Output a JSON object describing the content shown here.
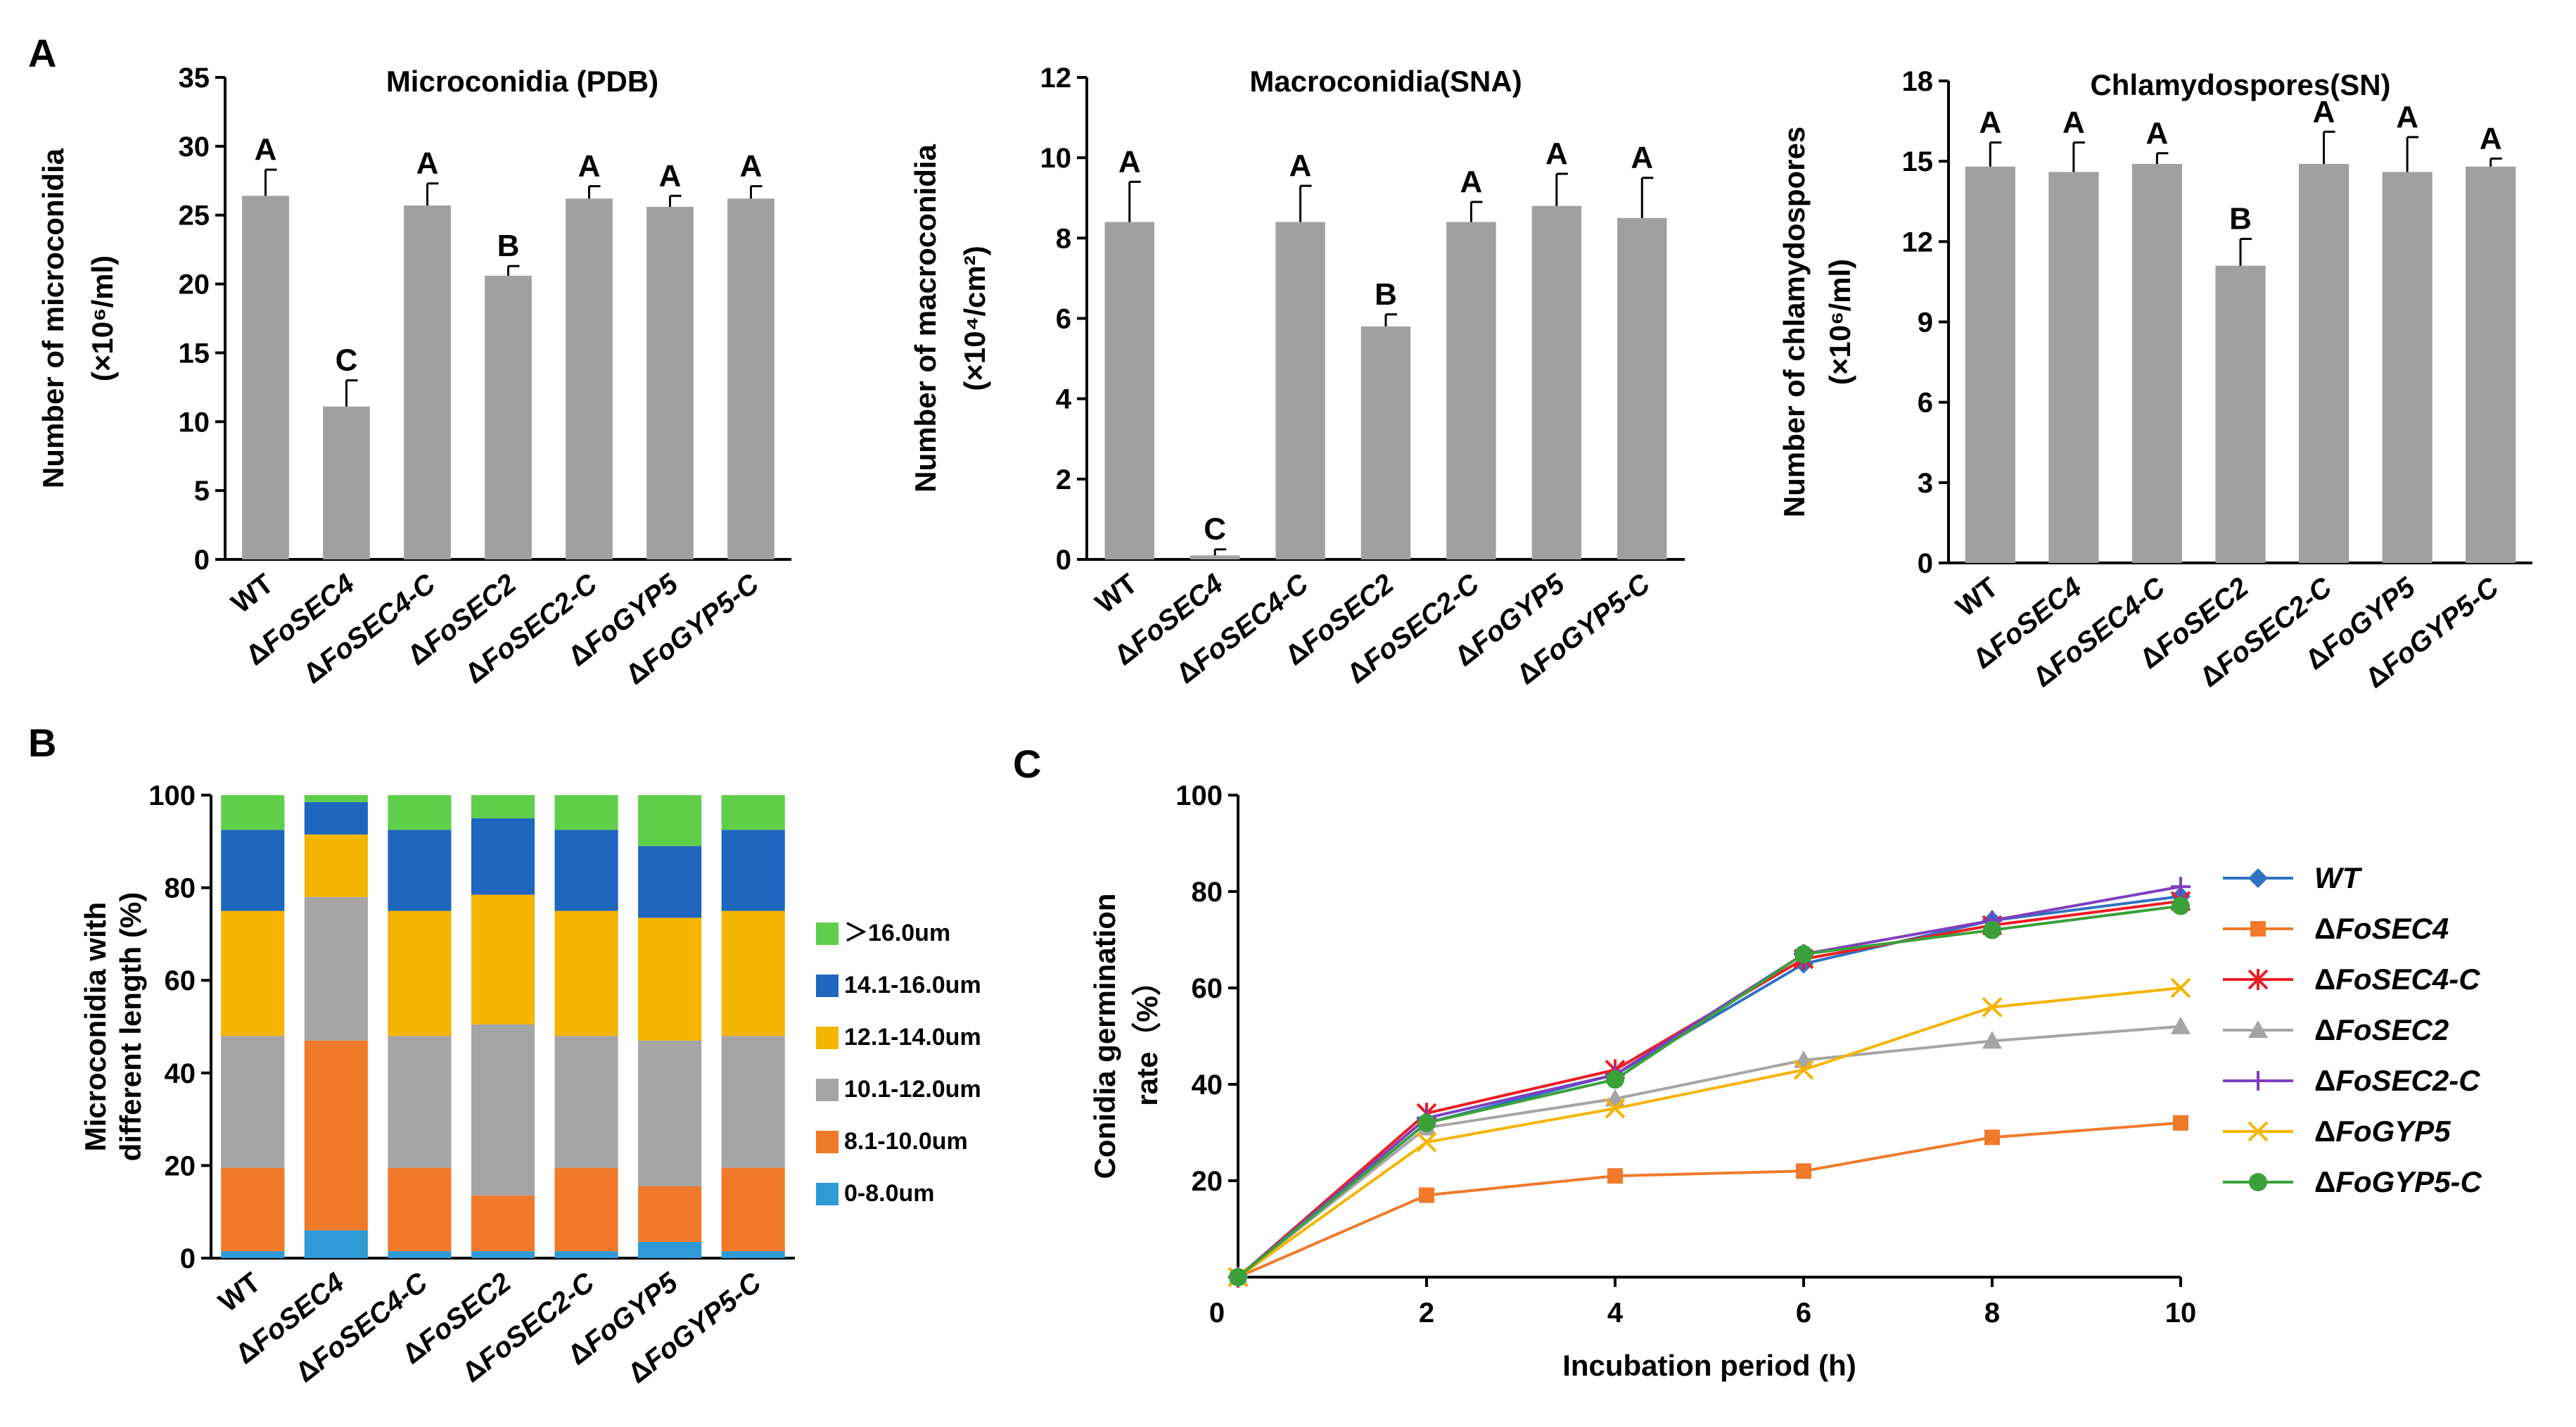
{
  "panel_labels": {
    "A": "A",
    "B": "B",
    "C": "C"
  },
  "chart_data": [
    {
      "id": "microconidia",
      "type": "bar",
      "title": "Microconidia (PDB)",
      "ylabel_line1": "Number of microconidia",
      "ylabel_line2": "(×10⁶/ml)",
      "categories": [
        "WT",
        "ΔFoSEC4",
        "ΔFoSEC4-C",
        "ΔFoSEC2",
        "ΔFoSEC2-C",
        "ΔFoGYP5",
        "ΔFoGYP5-C"
      ],
      "values": [
        26.4,
        11.1,
        25.7,
        20.6,
        26.2,
        25.6,
        26.2
      ],
      "errors": [
        1.9,
        1.9,
        1.6,
        0.7,
        0.9,
        0.8,
        0.9
      ],
      "letters": [
        "A",
        "C",
        "A",
        "B",
        "A",
        "A",
        "A"
      ],
      "yticks": [
        0,
        5,
        10,
        15,
        20,
        25,
        30,
        35
      ],
      "ylim": [
        0,
        35
      ],
      "bar_color": "#a0a0a0"
    },
    {
      "id": "macroconidia",
      "type": "bar",
      "title": "Macroconidia(SNA)",
      "ylabel_line1": "Number of macroconidia",
      "ylabel_line2": "(×10⁴/cm²)",
      "categories": [
        "WT",
        "ΔFoSEC4",
        "ΔFoSEC4-C",
        "ΔFoSEC2",
        "ΔFoSEC2-C",
        "ΔFoGYP5",
        "ΔFoGYP5-C"
      ],
      "values": [
        8.4,
        0.1,
        8.4,
        5.8,
        8.4,
        8.8,
        8.5
      ],
      "errors": [
        1.0,
        0.15,
        0.9,
        0.3,
        0.5,
        0.8,
        1.0
      ],
      "letters": [
        "A",
        "C",
        "A",
        "B",
        "A",
        "A",
        "A"
      ],
      "yticks": [
        0,
        2,
        4,
        6,
        8,
        10,
        12
      ],
      "ylim": [
        0,
        12
      ],
      "bar_color": "#a0a0a0"
    },
    {
      "id": "chlamydospores",
      "type": "bar",
      "title": "Chlamydospores(SN)",
      "ylabel_line1": "Number of chlamydospores",
      "ylabel_line2": "(×10⁶/ml)",
      "categories": [
        "WT",
        "ΔFoSEC4",
        "ΔFoSEC4-C",
        "ΔFoSEC2",
        "ΔFoSEC2-C",
        "ΔFoGYP5",
        "ΔFoGYP5-C"
      ],
      "values": [
        14.8,
        14.6,
        14.9,
        11.1,
        14.9,
        14.6,
        14.8
      ],
      "errors": [
        0.9,
        1.1,
        0.4,
        1.0,
        1.2,
        1.3,
        0.3
      ],
      "letters": [
        "A",
        "A",
        "A",
        "B",
        "A",
        "A",
        "A"
      ],
      "yticks": [
        0,
        3,
        6,
        9,
        12,
        15,
        18
      ],
      "ylim": [
        0,
        18
      ],
      "bar_color": "#a0a0a0"
    },
    {
      "id": "length-distribution",
      "type": "stacked-bar",
      "ylabel_line1": "Microconidia with",
      "ylabel_line2": "different length (%)",
      "categories": [
        "WT",
        "ΔFoSEC4",
        "ΔFoSEC4-C",
        "ΔFoSEC2",
        "ΔFoSEC2-C",
        "ΔFoGYP5",
        "ΔFoGYP5-C"
      ],
      "yticks": [
        0,
        20,
        40,
        60,
        80,
        100
      ],
      "ylim": [
        0,
        100
      ],
      "series": [
        {
          "name": "0-8.0um",
          "color": "#2e9bd6",
          "values": [
            1.5,
            6,
            1.5,
            1.5,
            1.5,
            3.5,
            1.5
          ]
        },
        {
          "name": "8.1-10.0um",
          "color": "#f07a2a",
          "values": [
            18,
            41,
            18,
            12,
            18,
            12,
            18
          ]
        },
        {
          "name": "10.1-12.0um",
          "color": "#a5a5a5",
          "values": [
            28.5,
            31,
            28.5,
            37,
            28.5,
            31.5,
            28.5
          ]
        },
        {
          "name": "12.1-14.0um",
          "color": "#f5b400",
          "values": [
            27,
            13.5,
            27,
            28,
            27,
            26.5,
            27
          ]
        },
        {
          "name": "14.1-16.0um",
          "color": "#1f66be",
          "values": [
            17.5,
            7,
            17.5,
            16.5,
            17.5,
            15.5,
            17.5
          ]
        },
        {
          "name": ">16.0um",
          "color": "#5fcf4a",
          "values": [
            7.5,
            1.5,
            7.5,
            5,
            7.5,
            11,
            7.5
          ]
        }
      ],
      "legend": [
        ">16.0um",
        "14.1-16.0um",
        "12.1-14.0um",
        "10.1-12.0um",
        "8.1-10.0um",
        "0-8.0um"
      ],
      "legend_marker_gt": "＞"
    },
    {
      "id": "germination",
      "type": "line",
      "xlabel": "Incubation period (h)",
      "ylabel_line1": "Conidia germination",
      "ylabel_line2": "rate（%）",
      "x": [
        0,
        2,
        4,
        6,
        8,
        10
      ],
      "xticks": [
        0,
        2,
        4,
        6,
        8,
        10
      ],
      "yticks": [
        20,
        40,
        60,
        80,
        100
      ],
      "xlim": [
        0,
        10
      ],
      "ylim": [
        0,
        100
      ],
      "series": [
        {
          "name": "WT",
          "color": "#2f72c4",
          "marker": "diamond",
          "values": [
            0,
            32,
            42,
            65,
            74,
            79
          ]
        },
        {
          "name": "ΔFoSEC4",
          "color": "#f07a2a",
          "marker": "square",
          "values": [
            0,
            17,
            21,
            22,
            29,
            32
          ]
        },
        {
          "name": "ΔFoSEC4-C",
          "color": "#ee1c24",
          "marker": "star",
          "values": [
            0,
            34,
            43,
            66,
            73,
            78
          ]
        },
        {
          "name": "ΔFoSEC2",
          "color": "#a5a5a5",
          "marker": "triangle",
          "values": [
            0,
            31,
            37,
            45,
            49,
            52
          ]
        },
        {
          "name": "ΔFoSEC2-C",
          "color": "#7f3fbf",
          "marker": "plus",
          "values": [
            0,
            33,
            42,
            67,
            74,
            81
          ]
        },
        {
          "name": "ΔFoGYP5",
          "color": "#f5b400",
          "marker": "x",
          "values": [
            0,
            28,
            35,
            43,
            56,
            60
          ]
        },
        {
          "name": "ΔFoGYP5-C",
          "color": "#3aa13a",
          "marker": "circle",
          "values": [
            0,
            32,
            41,
            67,
            72,
            77
          ]
        }
      ]
    }
  ]
}
